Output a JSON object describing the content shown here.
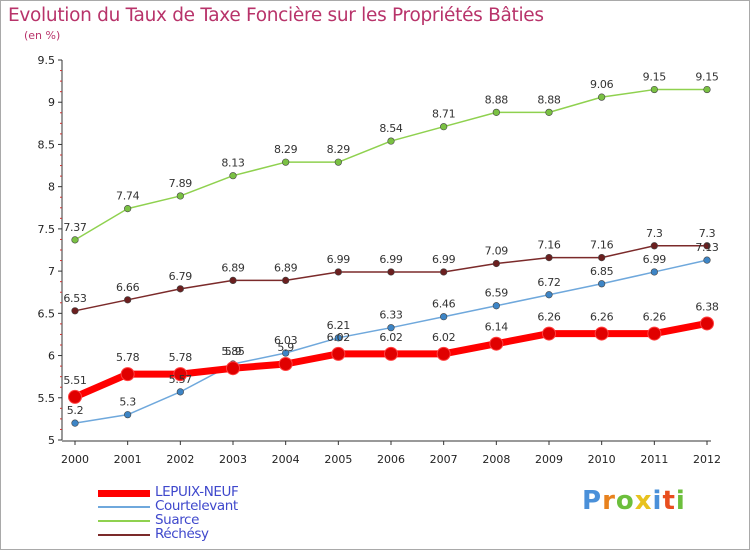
{
  "title": "Evolution du Taux de Taxe Foncière sur les Propriétés Bâties",
  "subtitle": "(en %)",
  "colors": {
    "title": "#b8336a",
    "legend_text": "#3f48cc",
    "axis": "#333333",
    "tick_minor": "#cc3333"
  },
  "logo": {
    "letters": [
      "P",
      "r",
      "o",
      "x",
      "i",
      "t",
      "i"
    ],
    "colors": [
      "#4a90d9",
      "#e8821e",
      "#6cbf3c",
      "#e8c21e",
      "#4a90d9",
      "#e84e1e",
      "#6cbf3c"
    ]
  },
  "chart_data": {
    "type": "line",
    "categories": [
      "2000",
      "2001",
      "2002",
      "2003",
      "2004",
      "2005",
      "2006",
      "2007",
      "2008",
      "2009",
      "2010",
      "2011",
      "2012"
    ],
    "ylim": [
      5,
      9.5
    ],
    "yticks": [
      "5",
      "5.5",
      "6",
      "6.5",
      "7",
      "7.5",
      "8",
      "8.5",
      "9",
      "9.5"
    ],
    "grid": false,
    "legend_position": "bottom-left",
    "series": [
      {
        "name": "Suarce",
        "color": "#8fd14f",
        "marker": "#7ac143",
        "width": 1.5,
        "values": [
          7.37,
          7.74,
          7.89,
          8.13,
          8.29,
          8.29,
          8.54,
          8.71,
          8.88,
          8.88,
          9.06,
          9.15,
          9.15
        ],
        "labels": [
          "7.37",
          "7.74",
          "7.89",
          "8.13",
          "8.29",
          "8.29",
          "8.54",
          "8.71",
          "8.88",
          "8.88",
          "9.06",
          "9.15",
          "9.15"
        ]
      },
      {
        "name": "Réchésy",
        "color": "#7b2a2a",
        "marker": "#6b1f1f",
        "width": 1.5,
        "values": [
          6.53,
          6.66,
          6.79,
          6.89,
          6.89,
          6.99,
          6.99,
          6.99,
          7.09,
          7.16,
          7.16,
          7.3,
          7.3
        ],
        "labels": [
          "6.53",
          "6.66",
          "6.79",
          "6.89",
          "6.89",
          "6.99",
          "6.99",
          "6.99",
          "7.09",
          "7.16",
          "7.16",
          "7.3",
          "7.3"
        ]
      },
      {
        "name": "Courtelevant",
        "color": "#6fa8dc",
        "marker": "#3d85c6",
        "width": 1.5,
        "values": [
          5.2,
          5.3,
          5.57,
          5.9,
          6.03,
          6.21,
          6.33,
          6.46,
          6.59,
          6.72,
          6.85,
          6.99,
          7.13
        ],
        "labels": [
          "5.2",
          "5.3",
          "5.57",
          "5.9",
          "6.03",
          "6.21",
          "6.33",
          "6.46",
          "6.59",
          "6.72",
          "6.85",
          "6.99",
          "7.13"
        ]
      },
      {
        "name": "LEPUIX-NEUF",
        "color": "#ff0000",
        "marker": "#e00000",
        "width": 7,
        "values": [
          5.51,
          5.78,
          5.78,
          5.85,
          5.9,
          6.02,
          6.02,
          6.02,
          6.14,
          6.26,
          6.26,
          6.26,
          6.38
        ],
        "labels": [
          "5.51",
          "5.78",
          "5.78",
          "5.85",
          "5.9",
          "6.02",
          "6.02",
          "6.02",
          "6.14",
          "6.26",
          "6.26",
          "6.26",
          "6.38"
        ]
      }
    ],
    "legend_order": [
      "LEPUIX-NEUF",
      "Courtelevant",
      "Suarce",
      "Réchésy"
    ]
  }
}
